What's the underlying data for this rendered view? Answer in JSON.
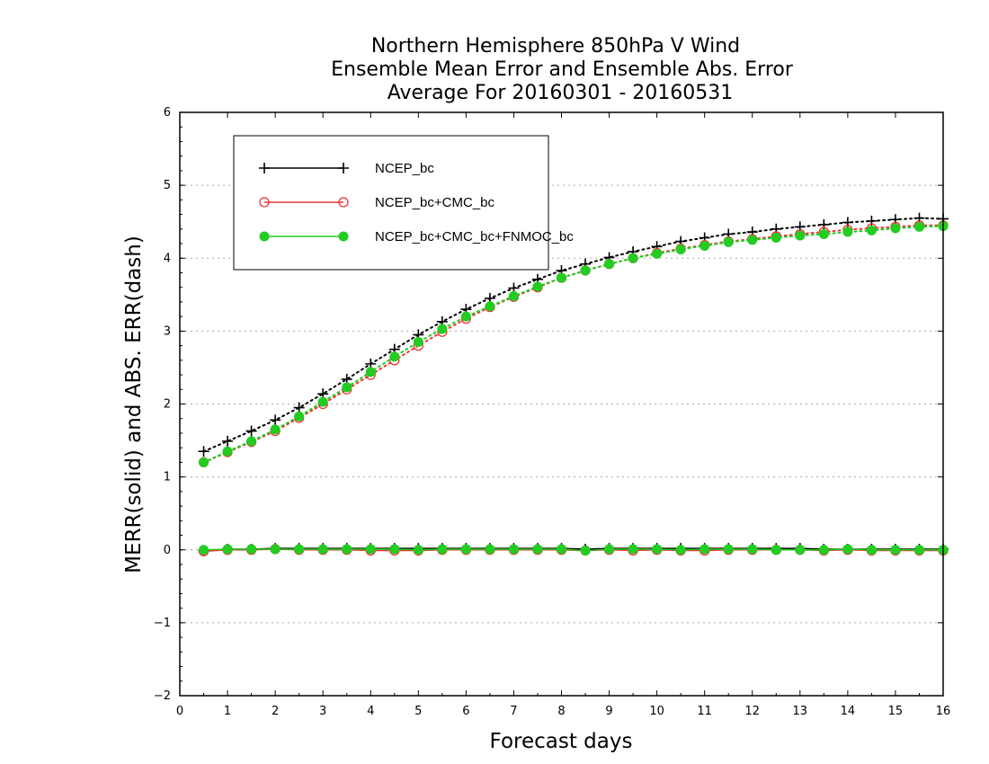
{
  "chart_data": {
    "type": "line",
    "title_lines": [
      "Northern Hemisphere 850hPa V Wind",
      "Ensemble Mean Error and Ensemble Abs. Error",
      "Average For 20160301 - 20160531"
    ],
    "xlabel": "Forecast days",
    "ylabel": "MERR(solid) and ABS. ERR(dash)",
    "xlim": [
      0,
      16
    ],
    "ylim": [
      -2,
      6
    ],
    "xticks": [
      "0",
      "1",
      "2",
      "3",
      "4",
      "5",
      "6",
      "7",
      "8",
      "9",
      "10",
      "11",
      "12",
      "13",
      "14",
      "15",
      "16"
    ],
    "yticks": [
      "−2",
      "−1",
      "0",
      "1",
      "2",
      "3",
      "4",
      "5",
      "6"
    ],
    "grid": "horizontal dotted",
    "legend_position": "top-left",
    "x": [
      0.5,
      1,
      1.5,
      2,
      2.5,
      3,
      3.5,
      4,
      4.5,
      5,
      5.5,
      6,
      6.5,
      7,
      7.5,
      8,
      8.5,
      9,
      9.5,
      10,
      10.5,
      11,
      11.5,
      12,
      12.5,
      13,
      13.5,
      14,
      14.5,
      15,
      15.5,
      16
    ],
    "series": [
      {
        "name": "NCEP_bc",
        "color": "#000000",
        "marker": "plus",
        "abs_err": [
          1.35,
          1.49,
          1.63,
          1.78,
          1.95,
          2.14,
          2.34,
          2.55,
          2.75,
          2.95,
          3.13,
          3.3,
          3.45,
          3.59,
          3.71,
          3.83,
          3.92,
          4.01,
          4.09,
          4.16,
          4.23,
          4.28,
          4.33,
          4.36,
          4.4,
          4.43,
          4.46,
          4.49,
          4.51,
          4.53,
          4.55,
          4.54
        ],
        "mean_err": [
          -0.01,
          0.01,
          0.01,
          0.02,
          0.02,
          0.02,
          0.02,
          0.02,
          0.02,
          0.02,
          0.02,
          0.02,
          0.02,
          0.02,
          0.02,
          0.02,
          0.01,
          0.02,
          0.02,
          0.02,
          0.02,
          0.02,
          0.02,
          0.02,
          0.02,
          0.02,
          0.01,
          0.01,
          0.01,
          0.01,
          0.01,
          0.01
        ]
      },
      {
        "name": "NCEP_bc+CMC_bc",
        "color": "#ee3333",
        "marker": "open-circle",
        "abs_err": [
          1.2,
          1.34,
          1.48,
          1.63,
          1.81,
          2.0,
          2.2,
          2.4,
          2.6,
          2.8,
          2.99,
          3.17,
          3.33,
          3.47,
          3.6,
          3.73,
          3.83,
          3.92,
          4.0,
          4.07,
          4.13,
          4.18,
          4.23,
          4.26,
          4.3,
          4.33,
          4.36,
          4.39,
          4.41,
          4.43,
          4.45,
          4.45
        ],
        "mean_err": [
          -0.02,
          0.0,
          0.0,
          0.01,
          0.0,
          0.0,
          0.0,
          -0.01,
          -0.01,
          -0.01,
          0.0,
          0.0,
          0.0,
          0.0,
          0.0,
          0.0,
          -0.01,
          0.0,
          -0.01,
          0.0,
          -0.01,
          -0.01,
          0.0,
          0.0,
          0.0,
          0.0,
          -0.01,
          0.0,
          -0.01,
          -0.01,
          -0.01,
          -0.01
        ]
      },
      {
        "name": "NCEP_bc+CMC_bc+FNMOC_bc",
        "color": "#22cc22",
        "marker": "filled-circle",
        "abs_err": [
          1.2,
          1.35,
          1.49,
          1.65,
          1.83,
          2.03,
          2.23,
          2.44,
          2.65,
          2.85,
          3.03,
          3.2,
          3.34,
          3.48,
          3.61,
          3.73,
          3.83,
          3.92,
          4.0,
          4.06,
          4.12,
          4.17,
          4.22,
          4.25,
          4.28,
          4.31,
          4.33,
          4.36,
          4.38,
          4.41,
          4.43,
          4.44
        ],
        "mean_err": [
          0.0,
          0.01,
          0.01,
          0.01,
          0.01,
          0.01,
          0.01,
          0.01,
          0.01,
          0.0,
          0.01,
          0.01,
          0.01,
          0.01,
          0.01,
          0.01,
          -0.01,
          0.01,
          0.01,
          0.01,
          0.0,
          0.01,
          0.01,
          0.01,
          0.0,
          0.0,
          0.0,
          0.01,
          0.0,
          0.0,
          0.0,
          0.0
        ]
      }
    ]
  }
}
